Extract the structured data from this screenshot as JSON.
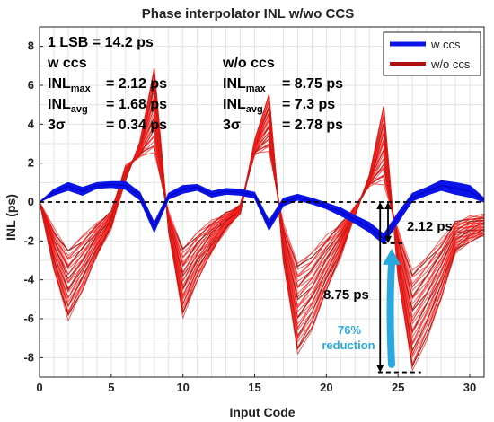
{
  "chart_data": {
    "type": "line",
    "title": "Phase interpolator INL w/wo CCS",
    "xlabel": "Input Code",
    "ylabel": "INL (ps)",
    "xlim": [
      0,
      31
    ],
    "ylim": [
      -9,
      9
    ],
    "xticks": [
      0,
      5,
      10,
      15,
      20,
      25,
      30
    ],
    "yticks": [
      -8,
      -6,
      -4,
      -2,
      0,
      2,
      4,
      6,
      8
    ],
    "grid": true,
    "legend_position": "top-right",
    "x": [
      0,
      1,
      2,
      3,
      4,
      5,
      6,
      7,
      8,
      9,
      10,
      11,
      12,
      13,
      14,
      15,
      16,
      17,
      18,
      19,
      20,
      21,
      22,
      23,
      24,
      25,
      26,
      27,
      28,
      29,
      30,
      31
    ],
    "series": [
      {
        "name": "w ccs",
        "color": "#0a14e6",
        "band": true,
        "values": [
          0,
          0.5,
          0.8,
          0.55,
          0.85,
          0.9,
          0.85,
          0.3,
          -1.3,
          0.3,
          0.65,
          0.75,
          0.4,
          0.55,
          0.5,
          0.35,
          -1.2,
          0.0,
          0.25,
          0.05,
          -0.2,
          -0.5,
          -0.9,
          -1.3,
          -1.9,
          -0.8,
          0.25,
          0.55,
          0.85,
          0.7,
          0.55,
          0.1
        ],
        "spread": [
          0,
          0.15,
          0.2,
          0.2,
          0.15,
          0.15,
          0.2,
          0.2,
          0.25,
          0.15,
          0.2,
          0.15,
          0.15,
          0.15,
          0.15,
          0.15,
          0.25,
          0.2,
          0.15,
          0.15,
          0.15,
          0.2,
          0.2,
          0.25,
          0.25,
          0.25,
          0.2,
          0.2,
          0.25,
          0.3,
          0.3,
          0.1
        ]
      },
      {
        "name": "w/o ccs",
        "color": "#b01010",
        "values": [
          0,
          -3.5,
          -6.0,
          -4.5,
          -2.8,
          -1.3,
          1.2,
          3.0,
          7.0,
          -1.5,
          -5.9,
          -4.0,
          -2.6,
          -1.4,
          -0.5,
          3.1,
          5.6,
          -3.0,
          -7.8,
          -6.5,
          -4.6,
          -2.8,
          -0.6,
          1.3,
          5.0,
          -3.8,
          -8.7,
          -7.0,
          -5.0,
          -2.6,
          -2.0,
          -1.7
        ],
        "min": [
          0,
          -1.4,
          -2.4,
          -1.8,
          -1.1,
          -0.5,
          1.8,
          2.4,
          2.6,
          -0.6,
          -2.3,
          -1.6,
          -1.0,
          -0.6,
          -0.2,
          2.5,
          2.7,
          -1.2,
          -3.1,
          -2.6,
          -1.8,
          -1.1,
          -0.3,
          0.9,
          1.0,
          -1.5,
          -3.5,
          -2.8,
          -2.0,
          -1.0,
          -0.8,
          -0.7
        ]
      }
    ],
    "stats": {
      "lsb": "1 LSB = 14.2 ps",
      "with": {
        "heading": "w ccs",
        "inl_max": "= 2.12 ps",
        "inl_avg": "= 1.68 ps",
        "sigma": "= 0.34 ps"
      },
      "without": {
        "heading": "w/o ccs",
        "inl_max": "= 8.75 ps",
        "inl_avg": "= 7.3 ps",
        "sigma": "= 2.78 ps"
      },
      "label_inl": "INL",
      "sub_max": "max",
      "sub_avg": "avg",
      "label_sigma": "3σ"
    },
    "annotations": {
      "w_value": "2.12 ps",
      "wo_value": "8.75 ps",
      "reduction_pct": "76%",
      "reduction_word": "reduction",
      "w_level": -2.12,
      "wo_level": -8.75,
      "ref_level": 0
    }
  }
}
